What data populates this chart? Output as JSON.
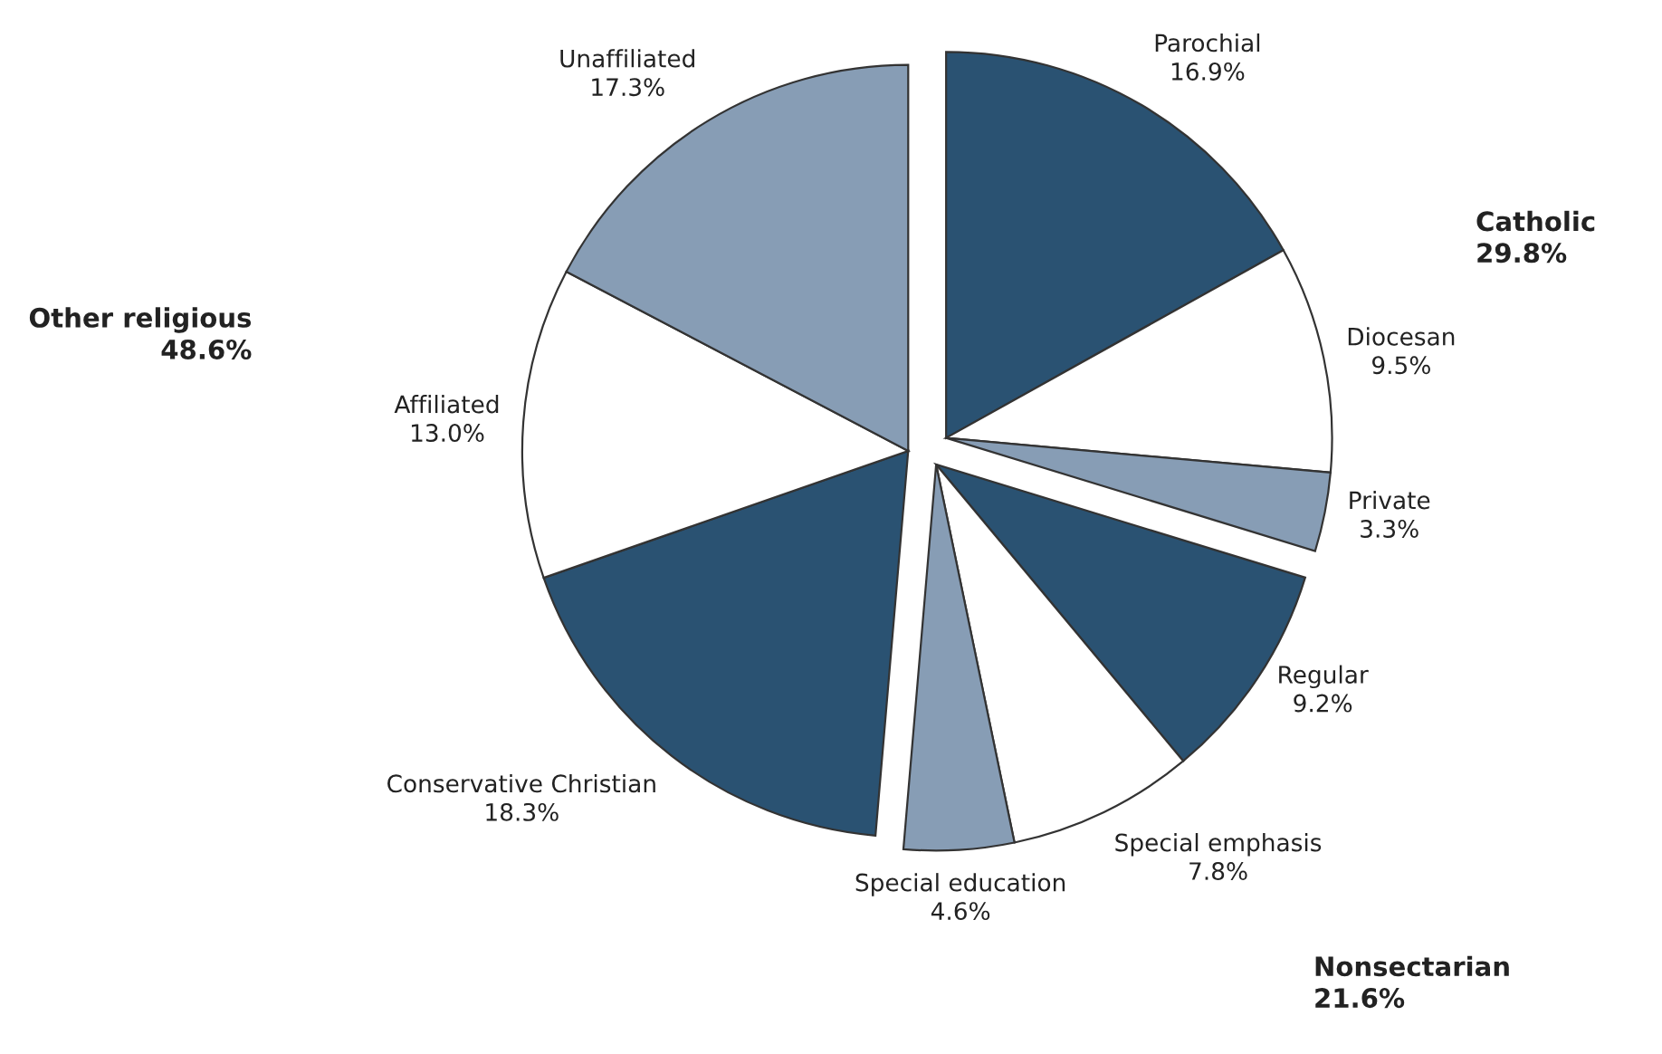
{
  "chart_data": {
    "type": "pie",
    "categories": [
      "Parochial",
      "Diocesan",
      "Private",
      "Regular",
      "Special emphasis",
      "Special education",
      "Conservative Christian",
      "Affiliated",
      "Unaffiliated"
    ],
    "values": [
      16.9,
      9.5,
      3.3,
      9.2,
      7.8,
      4.6,
      18.3,
      13.0,
      17.3
    ],
    "value_labels": [
      "16.9%",
      "9.5%",
      "3.3%",
      "9.2%",
      "7.8%",
      "4.6%",
      "18.3%",
      "13.0%",
      "17.3%"
    ],
    "colors": [
      "#2a5272",
      "#ffffff",
      "#879db5",
      "#2a5272",
      "#ffffff",
      "#879db5",
      "#2a5272",
      "#ffffff",
      "#879db5"
    ],
    "annotations": [
      "Catholic\n29.8%",
      "Nonsectarian\n21.6%",
      "Other religious\n48.6%"
    ]
  }
}
